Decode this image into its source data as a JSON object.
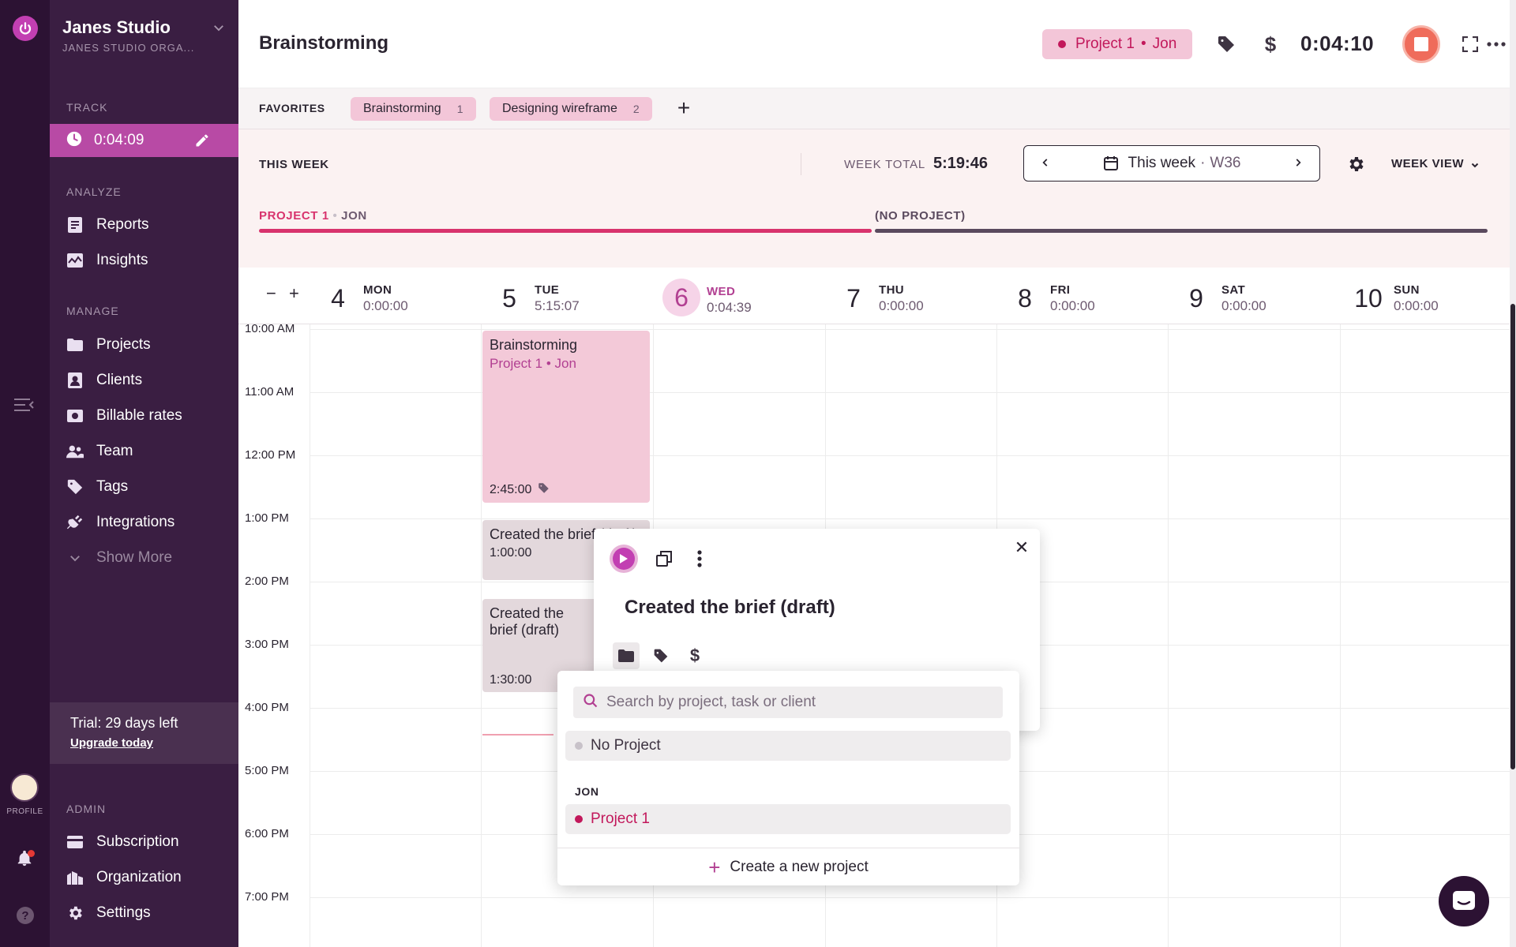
{
  "sidebar": {
    "org_name": "Janes Studio",
    "org_sub": "JANES STUDIO ORGA...",
    "track_label": "TRACK",
    "track_time": "0:04:09",
    "analyze_label": "ANALYZE",
    "analyze_items": [
      "Reports",
      "Insights"
    ],
    "manage_label": "MANAGE",
    "manage_items": [
      "Projects",
      "Clients",
      "Billable rates",
      "Team",
      "Tags",
      "Integrations"
    ],
    "show_more": "Show More",
    "trial_title": "Trial: 29 days left",
    "trial_link": "Upgrade today",
    "admin_label": "ADMIN",
    "admin_items": [
      "Subscription",
      "Organization",
      "Settings"
    ]
  },
  "rail": {
    "profile_label": "PROFILE",
    "help_glyph": "?"
  },
  "header": {
    "title": "Brainstorming",
    "project": "Project 1",
    "client": "Jon",
    "timer": "0:04:10"
  },
  "favorites": {
    "label": "FAVORITES",
    "items": [
      {
        "label": "Brainstorming",
        "count": "1"
      },
      {
        "label": "Designing wireframe",
        "count": "2"
      }
    ],
    "add_glyph": "+"
  },
  "week": {
    "label": "THIS WEEK",
    "total_label": "WEEK TOTAL",
    "total_value": "5:19:46",
    "range_label": "This week",
    "range_sep": "·",
    "week_code": "W36",
    "view_label": "WEEK VIEW",
    "projects": [
      {
        "name": "PROJECT 1",
        "client": "JON",
        "color": "#d8336d",
        "share": 0.5
      },
      {
        "name": "(NO PROJECT)",
        "client": "",
        "color": "#5a4a5e",
        "share": 0.5
      }
    ]
  },
  "zoom": {
    "minus": "−",
    "plus": "+"
  },
  "days": [
    {
      "num": "4",
      "name": "MON",
      "total": "0:00:00"
    },
    {
      "num": "5",
      "name": "TUE",
      "total": "5:15:07"
    },
    {
      "num": "6",
      "name": "WED",
      "total": "0:04:39",
      "today": true
    },
    {
      "num": "7",
      "name": "THU",
      "total": "0:00:00"
    },
    {
      "num": "8",
      "name": "FRI",
      "total": "0:00:00"
    },
    {
      "num": "9",
      "name": "SAT",
      "total": "0:00:00"
    },
    {
      "num": "10",
      "name": "SUN",
      "total": "0:00:00"
    }
  ],
  "times": [
    "10:00 AM",
    "11:00 AM",
    "12:00 PM",
    "1:00 PM",
    "2:00 PM",
    "3:00 PM",
    "4:00 PM",
    "5:00 PM",
    "6:00 PM",
    "7:00 PM"
  ],
  "events": [
    {
      "title": "Brainstorming",
      "project": "Project 1",
      "client": "Jon",
      "duration": "2:45:00"
    },
    {
      "title": "Created the brief (draft)",
      "duration": "1:00:00"
    },
    {
      "title": "Created the brief (draft)",
      "duration": "1:30:00"
    }
  ],
  "entry_popup": {
    "title": "Created the brief (draft)",
    "close_glyph": "✕"
  },
  "project_dropdown": {
    "search_placeholder": "Search by project, task or client",
    "no_project": "No Project",
    "group": "JON",
    "project": "Project 1",
    "create": "Create a new project"
  },
  "colors": {
    "accent": "#b24092",
    "project1": "#d8336d",
    "sidebar": "#3a1e42",
    "rail": "#2c1233",
    "event_pink": "#f3c9d8",
    "event_grey": "#e3d8dc"
  }
}
